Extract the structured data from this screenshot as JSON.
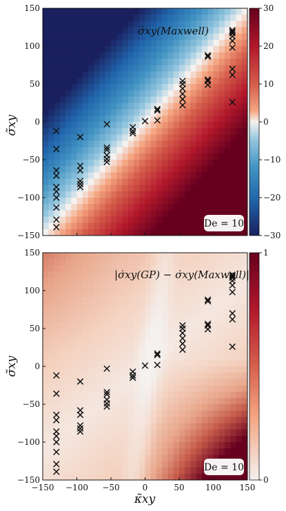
{
  "chart_data": [
    {
      "type": "heatmap",
      "panel": "top",
      "title": "",
      "annotation": "σ̇xy(Maxwell)",
      "badge": "De = 10",
      "xlabel": "",
      "ylabel": "σ̃xy",
      "xlim": [
        -150,
        150
      ],
      "ylim": [
        -150,
        150
      ],
      "xticks": [],
      "yticks": [
        -150,
        -100,
        -50,
        0,
        50,
        100,
        150
      ],
      "colorbar": {
        "min": -30,
        "max": 30,
        "ticks": [
          30,
          20,
          10,
          0,
          -10,
          -20,
          -30
        ],
        "colormap": "diverging blue-white-red"
      },
      "field": "Maxwell rate (kappa - sigma/De), scaled",
      "colors": {
        "low": "#1f2f8f",
        "mid": "#f4f1ef",
        "high": "#67001f"
      }
    },
    {
      "type": "heatmap",
      "panel": "bottom",
      "title": "",
      "annotation": "|σ̇xy(GP) − σ̇xy(Maxwell)|",
      "badge": "De = 10",
      "xlabel": "κ̃xy",
      "ylabel": "σ̃xy",
      "xlim": [
        -150,
        150
      ],
      "ylim": [
        -150,
        150
      ],
      "xticks": [
        -150,
        -100,
        -50,
        0,
        50,
        100,
        150
      ],
      "yticks": [
        -150,
        -100,
        -50,
        0,
        50,
        100,
        150
      ],
      "colorbar": {
        "min": 0,
        "max": 1,
        "ticks": [
          1,
          0
        ],
        "colormap": "white-red"
      },
      "colors": {
        "low": "#f4f1ef",
        "high": "#67001f"
      }
    }
  ],
  "training_points": {
    "marker": "x",
    "points": [
      [
        -130,
        -12
      ],
      [
        -130,
        -36
      ],
      [
        -130,
        -64
      ],
      [
        -130,
        -71
      ],
      [
        -130,
        -86
      ],
      [
        -130,
        -92
      ],
      [
        -130,
        -100
      ],
      [
        -130,
        -113
      ],
      [
        -130,
        -129
      ],
      [
        -130,
        -139
      ],
      [
        -95,
        -20
      ],
      [
        -95,
        -58
      ],
      [
        -95,
        -64
      ],
      [
        -95,
        -78
      ],
      [
        -95,
        -82
      ],
      [
        -95,
        -86
      ],
      [
        -56,
        -3
      ],
      [
        -56,
        -34
      ],
      [
        -56,
        -37
      ],
      [
        -56,
        -44
      ],
      [
        -56,
        -49
      ],
      [
        -56,
        -53
      ],
      [
        -18,
        -7
      ],
      [
        -18,
        -12
      ],
      [
        -18,
        -15
      ],
      [
        0,
        1
      ],
      [
        18,
        2
      ],
      [
        18,
        15
      ],
      [
        18,
        17
      ],
      [
        55,
        22
      ],
      [
        55,
        30
      ],
      [
        55,
        37
      ],
      [
        55,
        44
      ],
      [
        55,
        50
      ],
      [
        55,
        54
      ],
      [
        92,
        49
      ],
      [
        92,
        54
      ],
      [
        92,
        56
      ],
      [
        92,
        86
      ],
      [
        92,
        88
      ],
      [
        128,
        26
      ],
      [
        128,
        62
      ],
      [
        128,
        70
      ],
      [
        128,
        98
      ],
      [
        128,
        107
      ],
      [
        128,
        113
      ],
      [
        128,
        117
      ],
      [
        128,
        119
      ],
      [
        128,
        121
      ]
    ]
  }
}
